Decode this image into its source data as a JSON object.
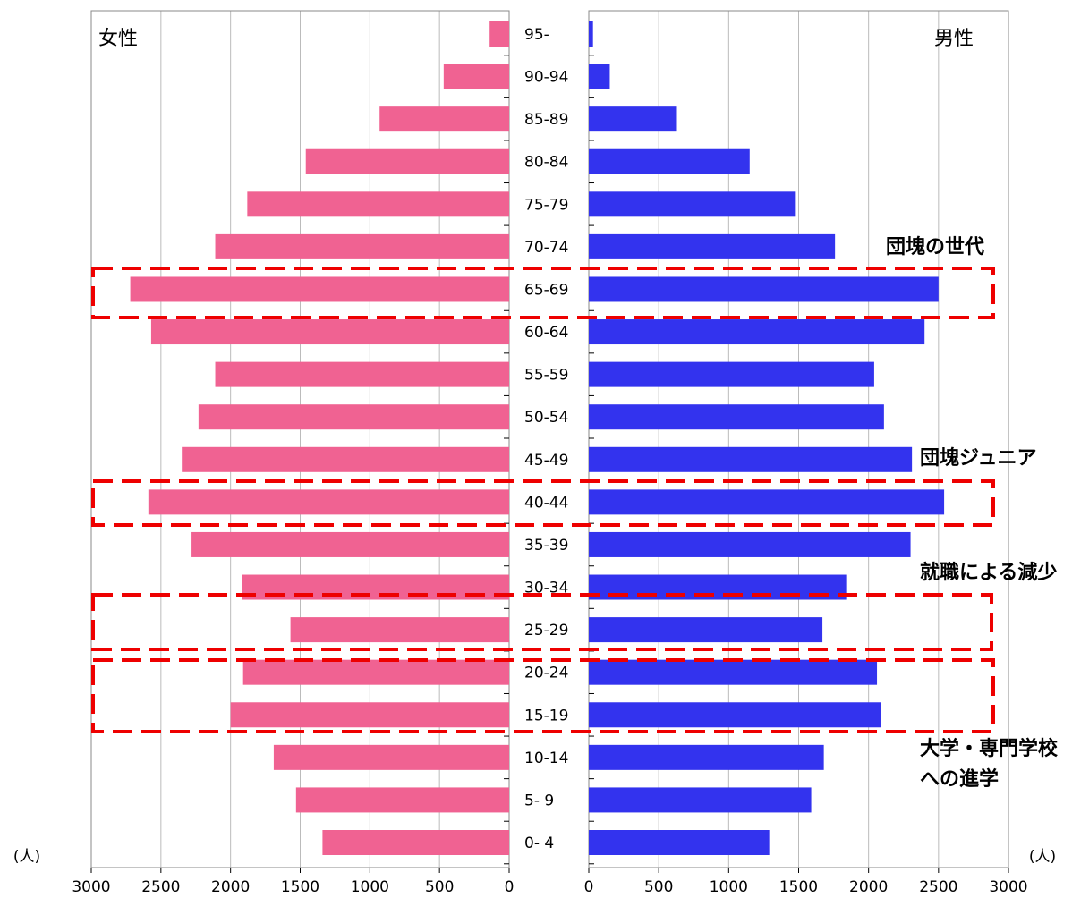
{
  "chart_data": {
    "type": "pyramid",
    "categories": [
      "95-",
      "90-94",
      "85-89",
      "80-84",
      "75-79",
      "70-74",
      "65-69",
      "60-64",
      "55-59",
      "50-54",
      "45-49",
      "40-44",
      "35-39",
      "30-34",
      "25-29",
      "20-24",
      "15-19",
      "10-14",
      "5- 9",
      "0- 4"
    ],
    "series": [
      {
        "name": "女性",
        "color": "#f06292",
        "values": [
          140,
          470,
          930,
          1460,
          1880,
          2110,
          2720,
          2570,
          2110,
          2230,
          2350,
          2590,
          2280,
          1920,
          1570,
          1910,
          2000,
          1690,
          1530,
          1340
        ]
      },
      {
        "name": "男性",
        "color": "#3333ee",
        "values": [
          30,
          150,
          630,
          1150,
          1480,
          1760,
          2500,
          2400,
          2040,
          2110,
          2310,
          2540,
          2300,
          1840,
          1670,
          2060,
          2090,
          1680,
          1590,
          1290
        ]
      }
    ],
    "xlim": [
      0,
      3000
    ],
    "xticks": [
      0,
      500,
      1000,
      1500,
      2000,
      2500,
      3000
    ],
    "unit": "(人)",
    "grid": true,
    "annotations": [
      [
        "団塊の世代"
      ],
      [
        "団塊ジュニア"
      ],
      [
        "就職による減少"
      ],
      [
        "大学・専門学校",
        "への進学"
      ]
    ]
  }
}
